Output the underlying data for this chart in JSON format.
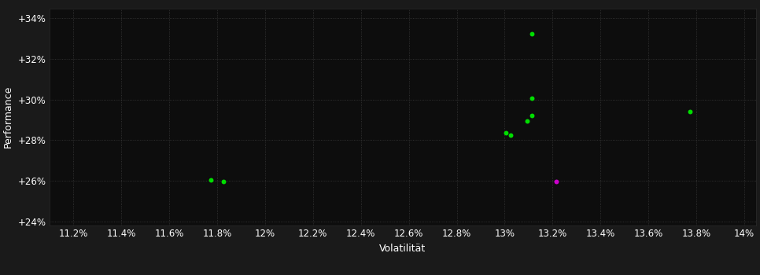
{
  "background_color": "#1a1a1a",
  "plot_bg_color": "#0d0d0d",
  "grid_color": "#3a3a3a",
  "text_color": "#ffffff",
  "xlabel": "Volatilität",
  "ylabel": "Performance",
  "xlim": [
    0.111,
    0.1405
  ],
  "ylim": [
    0.238,
    0.345
  ],
  "xticks": [
    0.112,
    0.114,
    0.116,
    0.118,
    0.12,
    0.122,
    0.124,
    0.126,
    0.128,
    0.13,
    0.132,
    0.134,
    0.136,
    0.138,
    0.14
  ],
  "yticks": [
    0.24,
    0.26,
    0.28,
    0.3,
    0.32,
    0.34
  ],
  "xtick_labels": [
    "11.2%",
    "11.4%",
    "11.6%",
    "11.8%",
    "12%",
    "12.2%",
    "12.4%",
    "12.6%",
    "12.8%",
    "13%",
    "13.2%",
    "13.4%",
    "13.6%",
    "13.8%",
    "14%"
  ],
  "ytick_labels": [
    "+24%",
    "+26%",
    "+28%",
    "+30%",
    "+32%",
    "+34%"
  ],
  "green_points": [
    [
      0.11775,
      0.2605
    ],
    [
      0.11825,
      0.2598
    ],
    [
      0.13005,
      0.2838
    ],
    [
      0.13025,
      0.2825
    ],
    [
      0.13095,
      0.2895
    ],
    [
      0.13115,
      0.292
    ],
    [
      0.13115,
      0.3005
    ],
    [
      0.13115,
      0.3325
    ],
    [
      0.13775,
      0.294
    ]
  ],
  "magenta_points": [
    [
      0.13215,
      0.2598
    ]
  ],
  "point_size": 18,
  "axis_fontsize": 9,
  "tick_fontsize": 8.5
}
